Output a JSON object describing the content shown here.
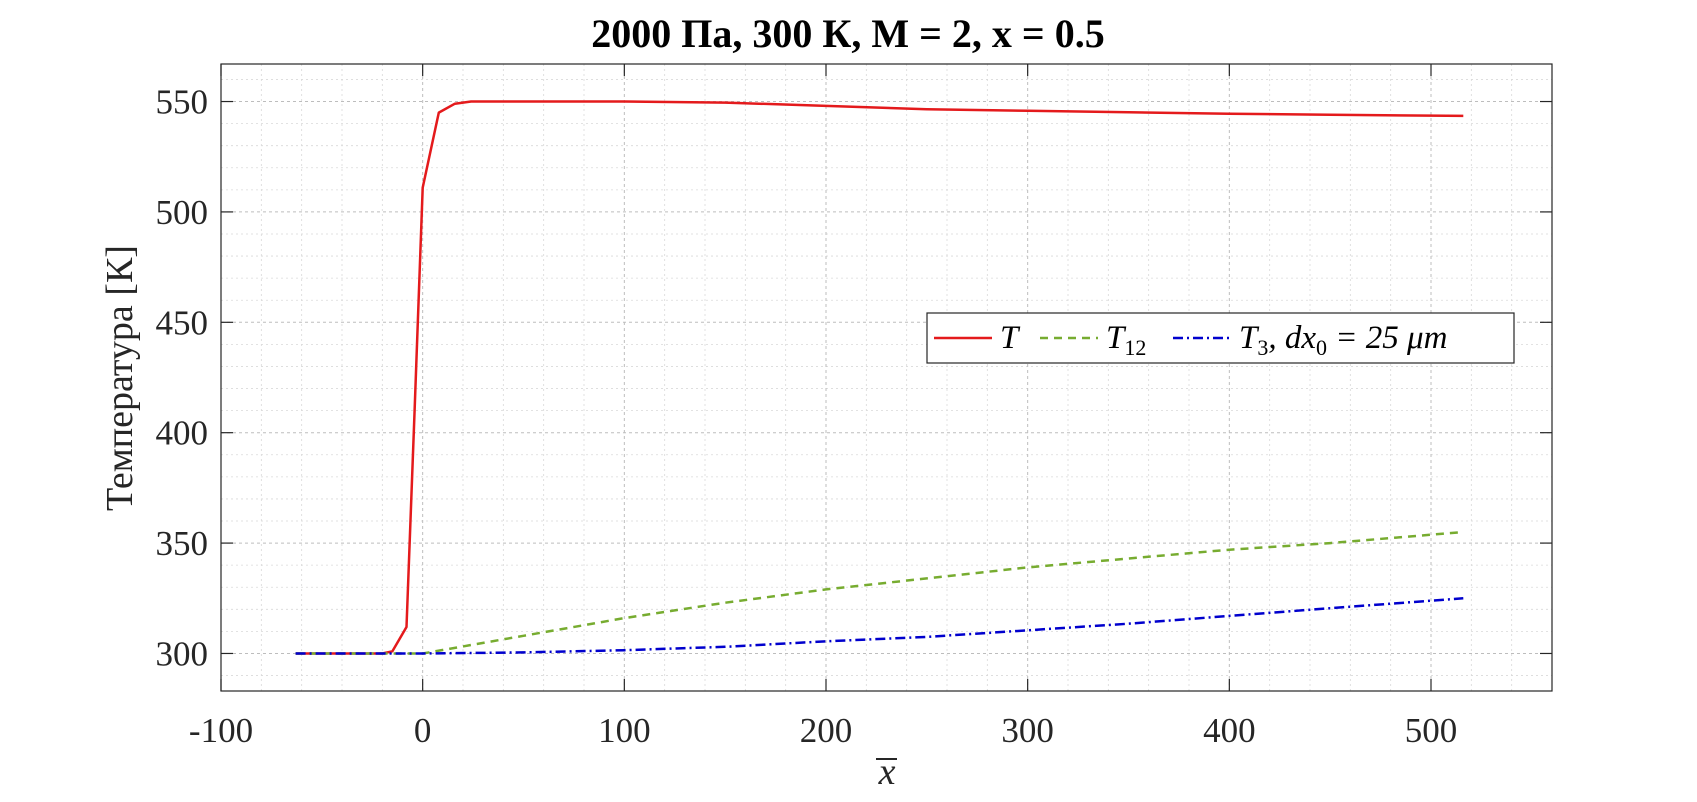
{
  "chart_data": {
    "type": "line",
    "title": "2000 Па, 300 К, M = 2, x = 0.5",
    "xlabel": "x",
    "ylabel": "Температура [К]",
    "xlim": [
      -100,
      560
    ],
    "ylim": [
      283,
      567
    ],
    "xticks": [
      -100,
      0,
      100,
      200,
      300,
      400,
      500
    ],
    "yticks": [
      300,
      350,
      400,
      450,
      500,
      550
    ],
    "xtick_labels": [
      "-100",
      "0",
      "100",
      "200",
      "300",
      "400",
      "500"
    ],
    "ytick_labels": [
      "300",
      "350",
      "400",
      "450",
      "500",
      "550"
    ],
    "grid": true,
    "minor_grid": true,
    "legend_position": "center-right",
    "series": [
      {
        "name": "T",
        "color": "#e41a1c",
        "dash": "solid",
        "x": [
          -63,
          -20,
          -15,
          -8,
          -4,
          0,
          8,
          16,
          24,
          50,
          100,
          150,
          200,
          250,
          300,
          350,
          400,
          450,
          516
        ],
        "y": [
          300,
          300,
          301,
          312,
          410,
          511,
          545,
          549,
          550,
          550,
          550,
          549.5,
          548,
          546.5,
          545.8,
          545.1,
          544.5,
          544,
          543.5
        ]
      },
      {
        "name": "T12",
        "color": "#77ac30",
        "dash": "dashed",
        "x": [
          -63,
          0,
          50,
          100,
          150,
          200,
          250,
          300,
          350,
          400,
          450,
          516
        ],
        "y": [
          300,
          300,
          308,
          316,
          323,
          329,
          334,
          339,
          343,
          347,
          350,
          355
        ]
      },
      {
        "name": "T3, dx0 = 25 μm",
        "color": "#0000cd",
        "dash": "dashdot",
        "x": [
          -63,
          0,
          50,
          100,
          150,
          200,
          250,
          300,
          350,
          400,
          450,
          516
        ],
        "y": [
          300,
          300,
          300.5,
          301.5,
          303,
          305.5,
          307.5,
          310.5,
          313.5,
          317,
          320.5,
          325
        ]
      }
    ]
  },
  "legend": {
    "T": "T",
    "T12_main": "T",
    "T12_sub": "12",
    "T3_main": "T",
    "T3_sub": "3",
    "T3_rest": ", dx",
    "T3_sub0": "0",
    "T3_eq": " = 25 μm"
  }
}
